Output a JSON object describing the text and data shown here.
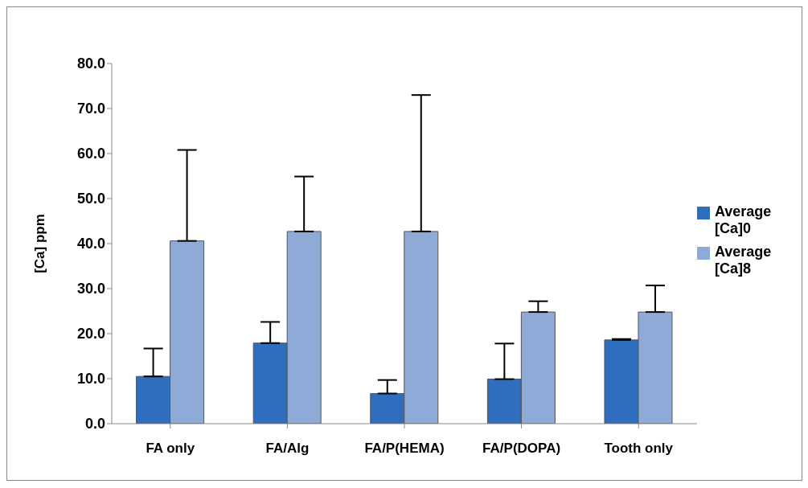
{
  "chart_data": {
    "type": "bar",
    "ylabel": "[Ca] ppm",
    "categories": [
      "FA only",
      "FA/Alg",
      "FA/P(HEMA)",
      "FA/P(DOPA)",
      "Tooth only"
    ],
    "series": [
      {
        "name": "Average [Ca]0",
        "color": "#2f6dbf",
        "values": [
          10.5,
          17.9,
          6.7,
          9.9,
          18.6
        ],
        "errors": [
          [
            10.5,
            16.7
          ],
          [
            17.9,
            22.6
          ],
          [
            6.7,
            9.7
          ],
          [
            9.9,
            17.8
          ],
          [
            18.6,
            18.8
          ]
        ]
      },
      {
        "name": "Average [Ca]8",
        "color": "#8eabd8",
        "values": [
          40.6,
          42.7,
          42.7,
          24.8,
          24.8
        ],
        "errors": [
          [
            40.6,
            60.8
          ],
          [
            42.7,
            54.9
          ],
          [
            42.7,
            73.0
          ],
          [
            24.8,
            27.2
          ],
          [
            24.8,
            30.7
          ]
        ]
      }
    ],
    "ylim": [
      0,
      80
    ],
    "yticks": [
      {
        "value": 0,
        "label": "0.0"
      },
      {
        "value": 10,
        "label": "10.0"
      },
      {
        "value": 20,
        "label": "20.0"
      },
      {
        "value": 30,
        "label": "30.0"
      },
      {
        "value": 40,
        "label": "40.0"
      },
      {
        "value": 50,
        "label": "50.0"
      },
      {
        "value": 60,
        "label": "60.0"
      },
      {
        "value": 70,
        "label": "70.0"
      },
      {
        "value": 80,
        "label": "80.0"
      }
    ],
    "grid": false,
    "legend": "right"
  }
}
